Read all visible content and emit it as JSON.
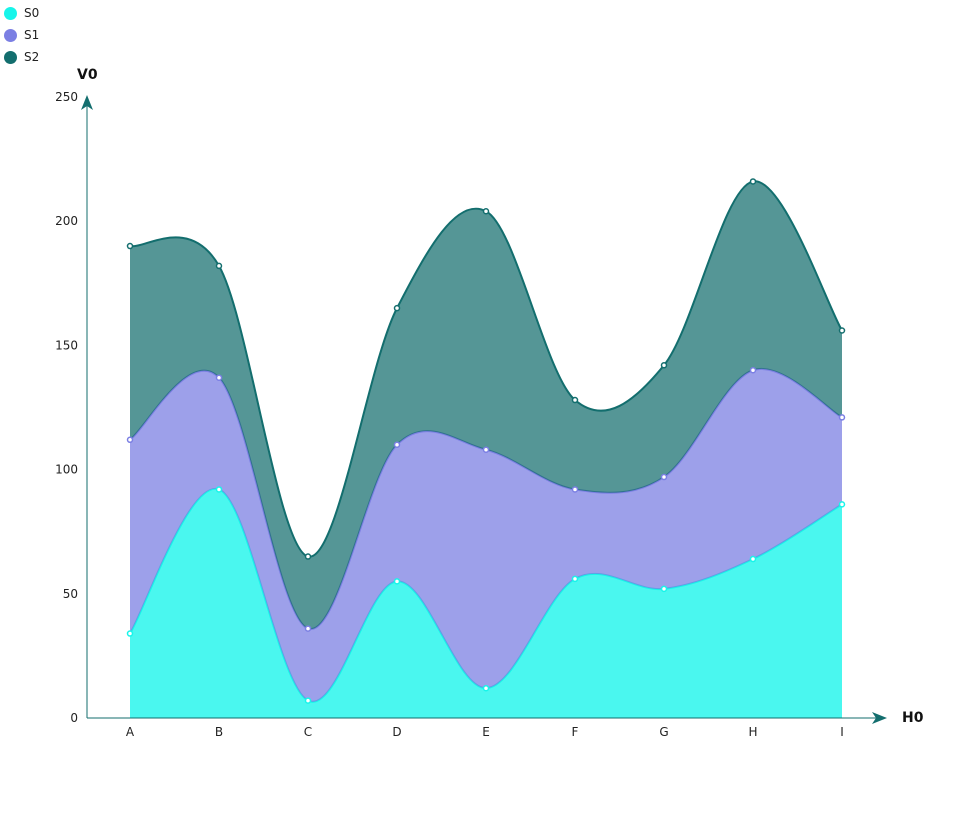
{
  "chart_data": {
    "type": "area",
    "stacked": true,
    "categories": [
      "A",
      "B",
      "C",
      "D",
      "E",
      "F",
      "G",
      "H",
      "I"
    ],
    "series": [
      {
        "name": "S0",
        "color": "#17f5ea",
        "values": [
          34,
          92,
          7,
          55,
          12,
          56,
          52,
          64,
          86
        ]
      },
      {
        "name": "S1",
        "color": "#7b7fe3",
        "values": [
          78,
          45,
          29,
          55,
          96,
          36,
          45,
          76,
          35
        ]
      },
      {
        "name": "S2",
        "color": "#136e6e",
        "values": [
          78,
          45,
          29,
          55,
          96,
          36,
          45,
          76,
          35
        ]
      }
    ],
    "stack_totals": [
      190,
      182,
      65,
      165,
      204,
      128,
      142,
      216,
      156
    ],
    "xlabel": "H0",
    "ylabel": "V0",
    "ylim": [
      0,
      250
    ],
    "yticks": [
      0,
      50,
      100,
      150,
      200,
      250
    ],
    "legend_position": "top-left",
    "axis_color": "#136e6e"
  }
}
